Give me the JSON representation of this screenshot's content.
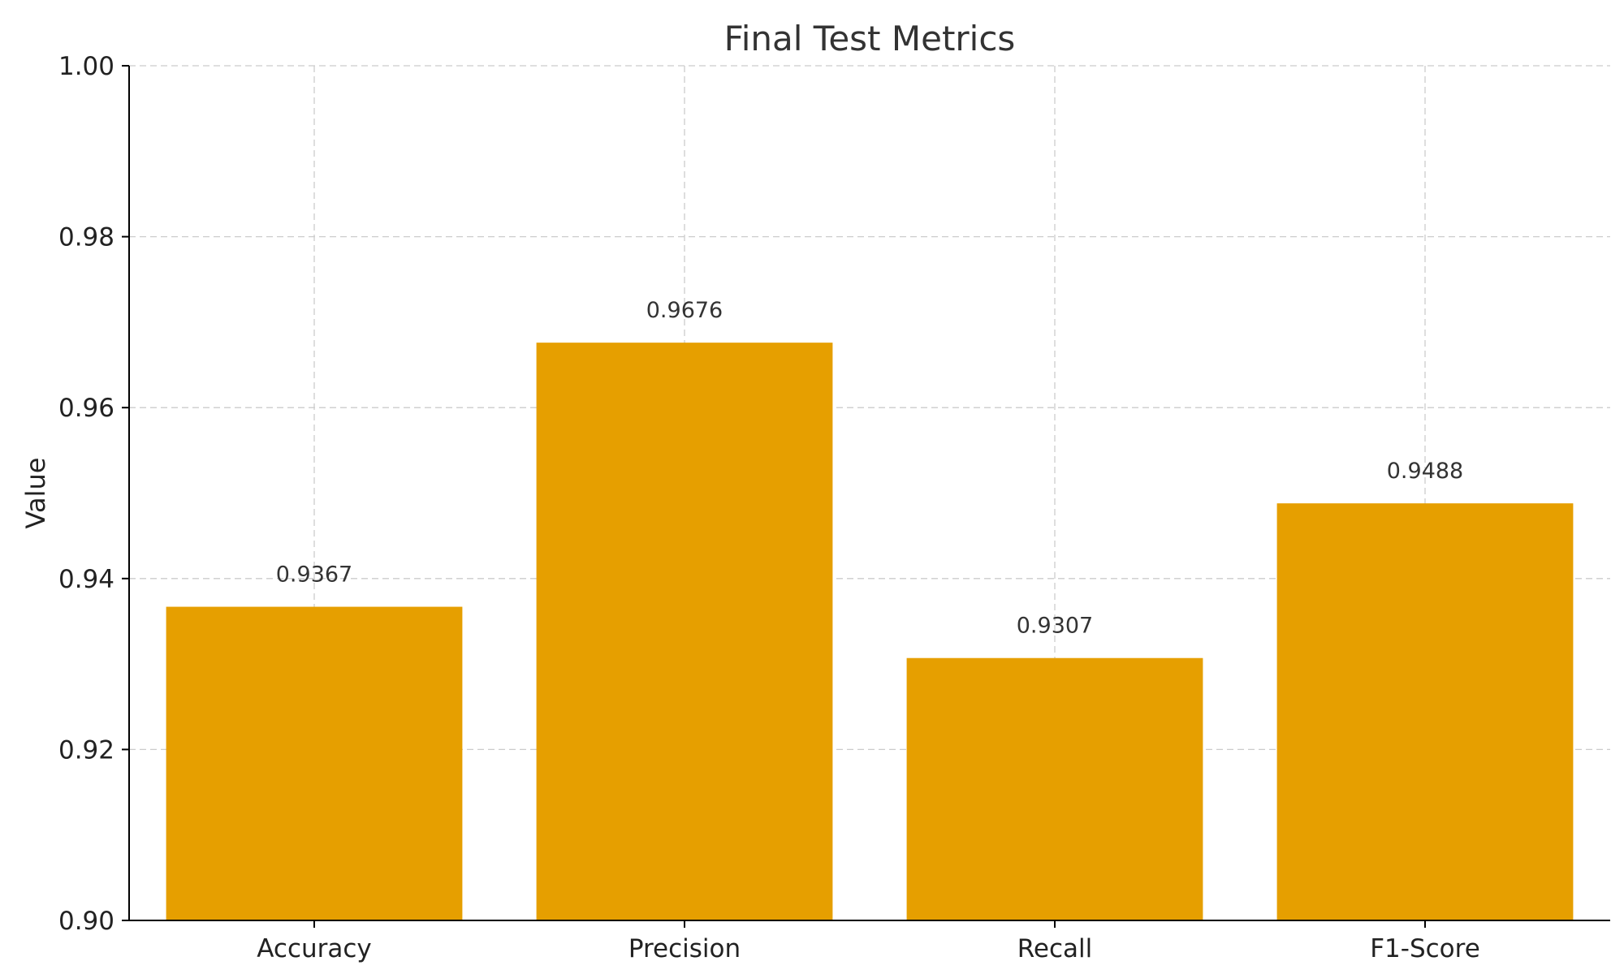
{
  "chart_data": {
    "type": "bar",
    "title": "Final Test Metrics",
    "xlabel": "",
    "ylabel": "Value",
    "categories": [
      "Accuracy",
      "Precision",
      "Recall",
      "F1-Score"
    ],
    "values": [
      0.9367,
      0.9676,
      0.9307,
      0.9488
    ],
    "value_labels": [
      "0.9367",
      "0.9676",
      "0.9307",
      "0.9488"
    ],
    "ylim": [
      0.9,
      1.0
    ],
    "yticks": [
      0.9,
      0.92,
      0.94,
      0.96,
      0.98,
      1.0
    ],
    "ytick_labels": [
      "0.90",
      "0.92",
      "0.94",
      "0.96",
      "0.98",
      "1.00"
    ],
    "grid": true,
    "bar_color": "#E69F00"
  }
}
